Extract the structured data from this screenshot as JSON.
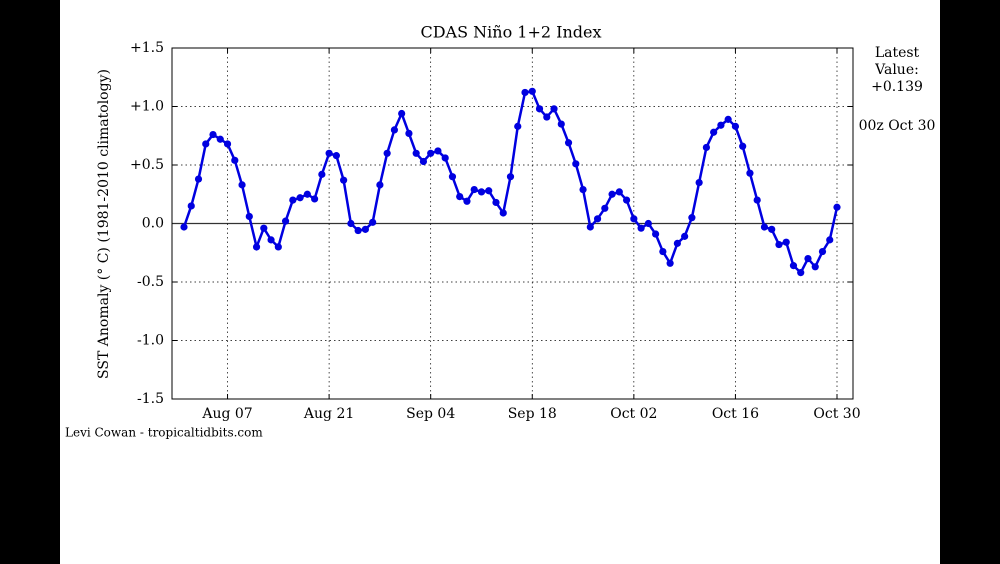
{
  "chart_data": {
    "type": "line",
    "title": "CDAS Niño 1+2 Index",
    "y_label": "SST Anomaly (° C) (1981-2010 climatology)",
    "credit": "Levi Cowan - tropicaltidbits.com",
    "annotations": [
      "Latest",
      "Value:",
      "+0.139",
      "00z Oct 30"
    ],
    "color": "#0000e0",
    "grid": true,
    "x": [
      "Aug 01",
      "Aug 02",
      "Aug 03",
      "Aug 04",
      "Aug 05",
      "Aug 06",
      "Aug 07",
      "Aug 08",
      "Aug 09",
      "Aug 10",
      "Aug 11",
      "Aug 12",
      "Aug 13",
      "Aug 14",
      "Aug 15",
      "Aug 16",
      "Aug 17",
      "Aug 18",
      "Aug 19",
      "Aug 20",
      "Aug 21",
      "Aug 22",
      "Aug 23",
      "Aug 24",
      "Aug 25",
      "Aug 26",
      "Aug 27",
      "Aug 28",
      "Aug 29",
      "Aug 30",
      "Aug 31",
      "Sep 01",
      "Sep 02",
      "Sep 03",
      "Sep 04",
      "Sep 05",
      "Sep 06",
      "Sep 07",
      "Sep 08",
      "Sep 09",
      "Sep 10",
      "Sep 11",
      "Sep 12",
      "Sep 13",
      "Sep 14",
      "Sep 15",
      "Sep 16",
      "Sep 17",
      "Sep 18",
      "Sep 19",
      "Sep 20",
      "Sep 21",
      "Sep 22",
      "Sep 23",
      "Sep 24",
      "Sep 25",
      "Sep 26",
      "Sep 27",
      "Sep 28",
      "Sep 29",
      "Sep 30",
      "Oct 01",
      "Oct 02",
      "Oct 03",
      "Oct 04",
      "Oct 05",
      "Oct 06",
      "Oct 07",
      "Oct 08",
      "Oct 09",
      "Oct 10",
      "Oct 11",
      "Oct 12",
      "Oct 13",
      "Oct 14",
      "Oct 15",
      "Oct 16",
      "Oct 17",
      "Oct 18",
      "Oct 19",
      "Oct 20",
      "Oct 21",
      "Oct 22",
      "Oct 23",
      "Oct 24",
      "Oct 25",
      "Oct 26",
      "Oct 27",
      "Oct 28",
      "Oct 29",
      "Oct 30"
    ],
    "values": [
      -0.03,
      0.15,
      0.38,
      0.68,
      0.76,
      0.72,
      0.68,
      0.54,
      0.33,
      0.06,
      -0.2,
      -0.04,
      -0.14,
      -0.2,
      0.02,
      0.2,
      0.22,
      0.25,
      0.21,
      0.42,
      0.6,
      0.58,
      0.37,
      0.0,
      -0.06,
      -0.05,
      0.01,
      0.33,
      0.6,
      0.8,
      0.94,
      0.77,
      0.6,
      0.53,
      0.6,
      0.62,
      0.56,
      0.4,
      0.23,
      0.19,
      0.29,
      0.27,
      0.28,
      0.18,
      0.09,
      0.4,
      0.83,
      1.12,
      1.13,
      0.98,
      0.91,
      0.98,
      0.85,
      0.69,
      0.51,
      0.29,
      -0.03,
      0.04,
      0.13,
      0.25,
      0.27,
      0.2,
      0.04,
      -0.04,
      0.0,
      -0.09,
      -0.24,
      -0.34,
      -0.17,
      -0.11,
      0.05,
      0.35,
      0.65,
      0.78,
      0.84,
      0.89,
      0.83,
      0.66,
      0.43,
      0.2,
      -0.03,
      -0.05,
      -0.18,
      -0.16,
      -0.36,
      -0.42,
      -0.3,
      -0.37,
      -0.24,
      -0.14,
      0.139
    ],
    "xticks": [
      "Aug 07",
      "Aug 21",
      "Sep 04",
      "Sep 18",
      "Oct 02",
      "Oct 16",
      "Oct 30"
    ],
    "ylim": [
      -1.5,
      1.5
    ],
    "yticks": [
      {
        "value": 1.5,
        "label": "+1.5"
      },
      {
        "value": 1.0,
        "label": "+1.0"
      },
      {
        "value": 0.5,
        "label": "+0.5"
      },
      {
        "value": 0.0,
        "label": "0.0"
      },
      {
        "value": -0.5,
        "label": "-0.5"
      },
      {
        "value": -1.0,
        "label": "-1.0"
      },
      {
        "value": -1.5,
        "label": "-1.5"
      }
    ]
  }
}
